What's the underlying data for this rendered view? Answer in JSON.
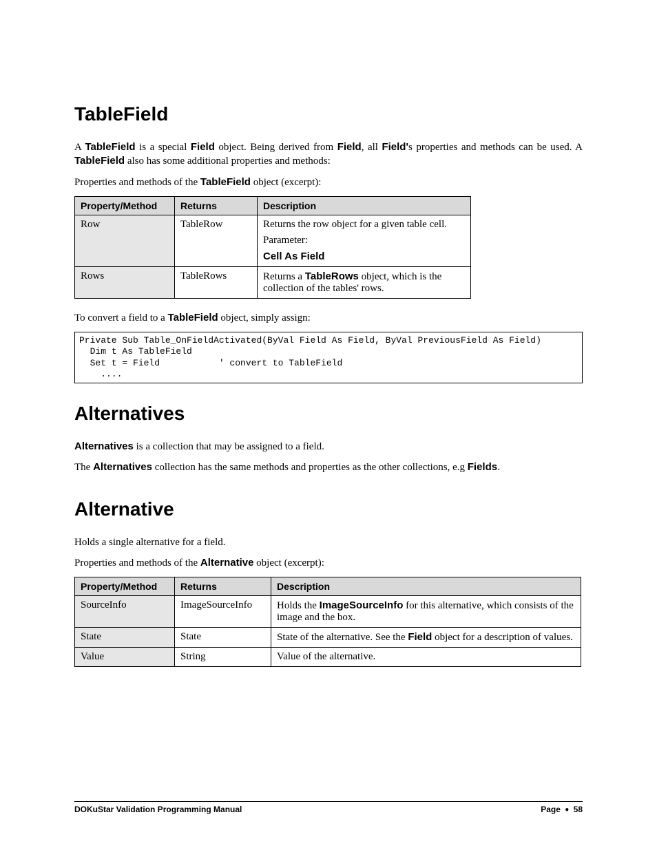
{
  "section1": {
    "heading": "TableField",
    "intro_parts": [
      {
        "t": "A "
      },
      {
        "t": "TableField",
        "b": true
      },
      {
        "t": " is a special "
      },
      {
        "t": "Field",
        "b": true
      },
      {
        "t": " object. Being derived from "
      },
      {
        "t": "Field",
        "b": true
      },
      {
        "t": ", all "
      },
      {
        "t": "Field'",
        "b": true
      },
      {
        "t": "s properties and methods can be used. A "
      },
      {
        "t": "TableField",
        "b": true
      },
      {
        "t": " also has some additional properties and methods:"
      }
    ],
    "excerpt_parts": [
      {
        "t": "Properties and methods of the "
      },
      {
        "t": "TableField",
        "b": true
      },
      {
        "t": " object (excerpt):"
      }
    ],
    "table": {
      "widths": [
        145,
        120,
        310
      ],
      "headers": [
        "Property/Method",
        "Returns",
        "Description"
      ],
      "rows": [
        {
          "prop": "Row",
          "returns": "TableRow",
          "desc": [
            [
              {
                "t": "Returns the row object for a given table cell."
              }
            ],
            [
              {
                "t": "Parameter:"
              }
            ],
            [
              {
                "t": "Cell As Field",
                "b": true
              }
            ]
          ]
        },
        {
          "prop": "Rows",
          "returns": "TableRows",
          "desc": [
            [
              {
                "t": "Returns a "
              },
              {
                "t": "TableRows",
                "b": true
              },
              {
                "t": " object, which is the collection of the tables' rows."
              }
            ]
          ]
        }
      ]
    },
    "convert_parts": [
      {
        "t": "To convert a field to a "
      },
      {
        "t": "TableField",
        "b": true
      },
      {
        "t": " object, simply assign:"
      }
    ],
    "code": "Private Sub Table_OnFieldActivated(ByVal Field As Field, ByVal PreviousField As Field)\n  Dim t As TableField\n  Set t = Field           ' convert to TableField\n    ...."
  },
  "section2": {
    "heading": "Alternatives",
    "p1_parts": [
      {
        "t": "Alternatives",
        "b": true
      },
      {
        "t": " is a collection that may be assigned to a field."
      }
    ],
    "p2_parts": [
      {
        "t": "The "
      },
      {
        "t": "Alternatives",
        "b": true
      },
      {
        "t": " collection has the same methods and properties as the other collections, e.g "
      },
      {
        "t": "Fields",
        "b": true
      },
      {
        "t": "."
      }
    ]
  },
  "section3": {
    "heading": "Alternative",
    "p1": "Holds a single alternative for a field.",
    "excerpt_parts": [
      {
        "t": "Properties and methods of the "
      },
      {
        "t": "Alternative",
        "b": true
      },
      {
        "t": " object (excerpt):"
      }
    ],
    "table": {
      "widths": [
        145,
        140,
        450
      ],
      "headers": [
        "Property/Method",
        "Returns",
        "Description"
      ],
      "rows": [
        {
          "prop": "SourceInfo",
          "returns": "ImageSourceInfo",
          "desc": [
            [
              {
                "t": "Holds the "
              },
              {
                "t": "ImageSourceInfo",
                "b": true
              },
              {
                "t": " for this alternative, which consists of the image and the box."
              }
            ]
          ]
        },
        {
          "prop": "State",
          "returns": "State",
          "desc": [
            [
              {
                "t": "State of the alternative. See the "
              },
              {
                "t": "Field",
                "b": true
              },
              {
                "t": " object for a description of values."
              }
            ]
          ]
        },
        {
          "prop": "Value",
          "returns": "String",
          "desc": [
            [
              {
                "t": "Value of the alternative."
              }
            ]
          ]
        }
      ]
    }
  },
  "footer": {
    "left": "DOKuStar Validation Programming Manual",
    "right_prefix": "Page",
    "number": "58"
  }
}
